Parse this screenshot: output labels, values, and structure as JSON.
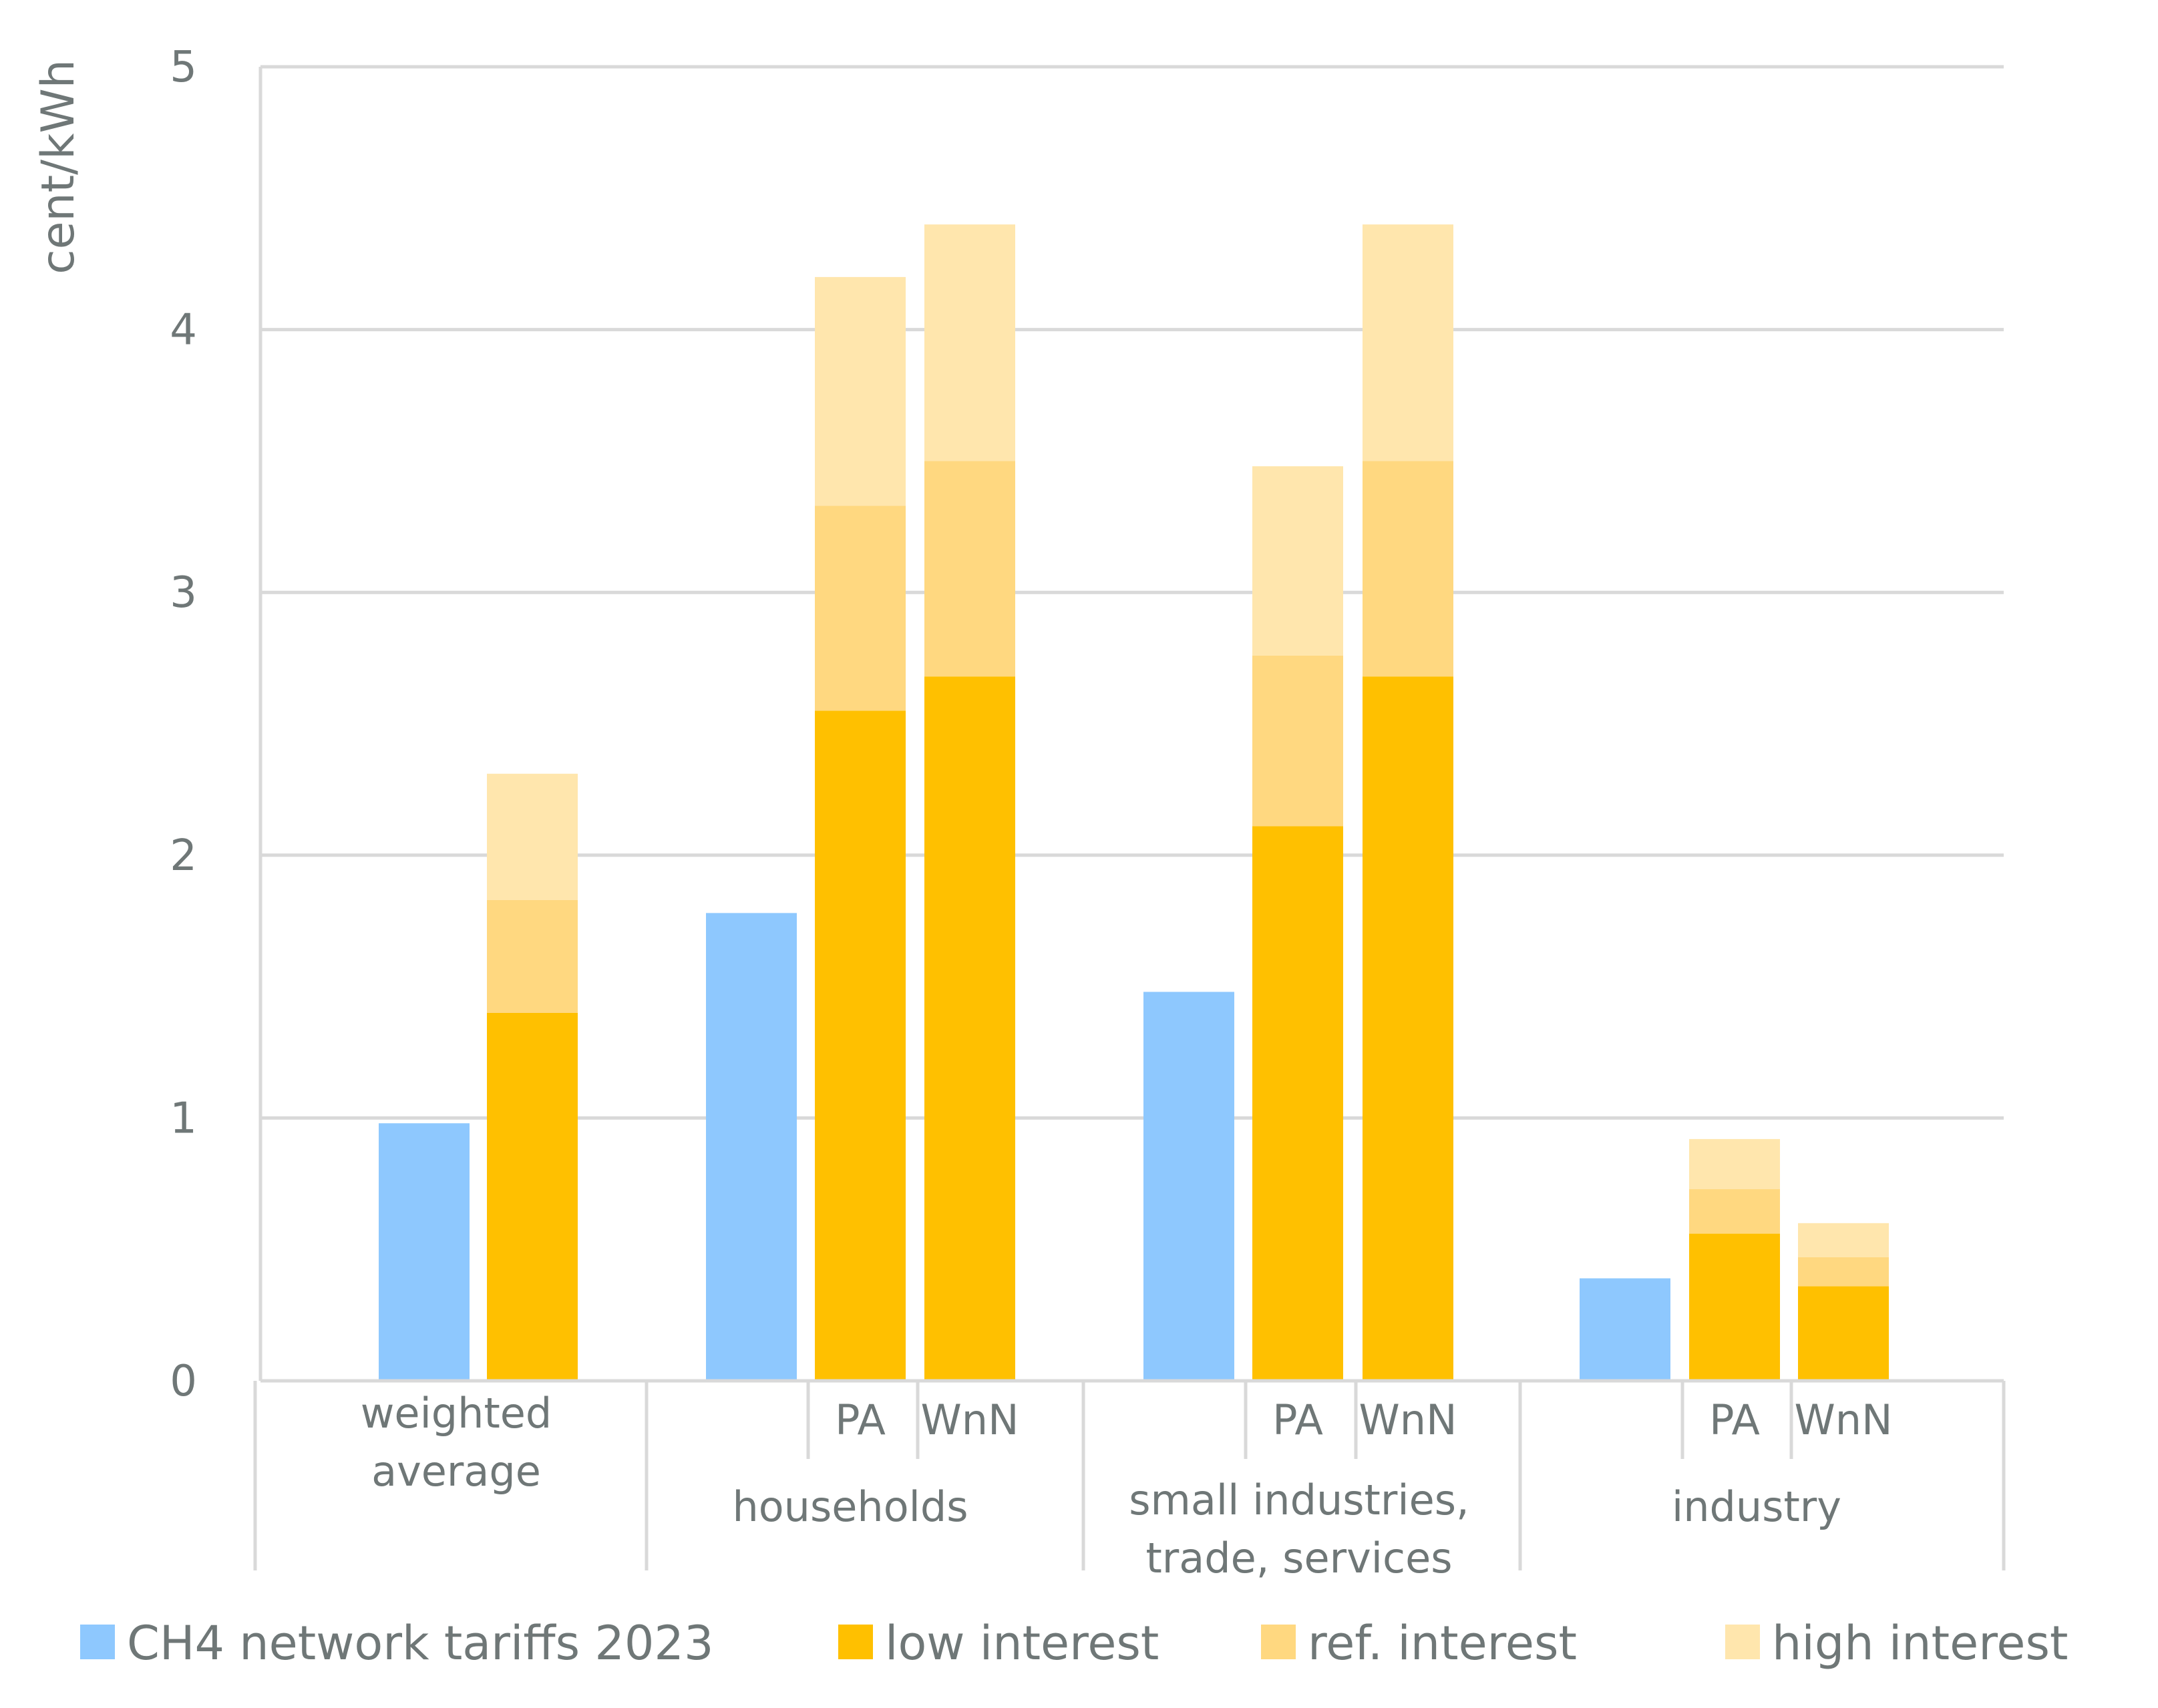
{
  "chart_data": {
    "type": "bar",
    "stacked": true,
    "ylabel": "cent/kWh",
    "ylim": [
      0,
      5
    ],
    "yticks": [
      "0",
      "1",
      "2",
      "3",
      "4",
      "5"
    ],
    "grid": true,
    "legend_position": "bottom",
    "groups": [
      {
        "label": [
          "weighted",
          "average"
        ],
        "bars": [
          {
            "sublabel": "",
            "segments": [
              {
                "series": "CH4 network tariffs 2023",
                "value": 0.98
              }
            ]
          },
          {
            "sublabel": "",
            "segments": [
              {
                "series": "low interest",
                "value": 1.4
              },
              {
                "series": "ref. interest",
                "value": 0.43
              },
              {
                "series": "high interest",
                "value": 0.48
              }
            ]
          }
        ]
      },
      {
        "label": [
          "households"
        ],
        "bars": [
          {
            "sublabel": "",
            "segments": [
              {
                "series": "CH4 network tariffs 2023",
                "value": 1.78
              }
            ]
          },
          {
            "sublabel": "PA",
            "segments": [
              {
                "series": "low interest",
                "value": 2.55
              },
              {
                "series": "ref. interest",
                "value": 0.78
              },
              {
                "series": "high interest",
                "value": 0.87
              }
            ]
          },
          {
            "sublabel": "WnN",
            "segments": [
              {
                "series": "low interest",
                "value": 2.68
              },
              {
                "series": "ref. interest",
                "value": 0.82
              },
              {
                "series": "high interest",
                "value": 0.9
              }
            ]
          }
        ]
      },
      {
        "label": [
          "small industries,",
          "trade, services"
        ],
        "bars": [
          {
            "sublabel": "",
            "segments": [
              {
                "series": "CH4 network tariffs 2023",
                "value": 1.48
              }
            ]
          },
          {
            "sublabel": "PA",
            "segments": [
              {
                "series": "low interest",
                "value": 2.11
              },
              {
                "series": "ref. interest",
                "value": 0.65
              },
              {
                "series": "high interest",
                "value": 0.72
              }
            ]
          },
          {
            "sublabel": "WnN",
            "segments": [
              {
                "series": "low interest",
                "value": 2.68
              },
              {
                "series": "ref. interest",
                "value": 0.82
              },
              {
                "series": "high interest",
                "value": 0.9
              }
            ]
          }
        ]
      },
      {
        "label": [
          "industry"
        ],
        "bars": [
          {
            "sublabel": "",
            "segments": [
              {
                "series": "CH4 network tariffs 2023",
                "value": 0.39
              }
            ]
          },
          {
            "sublabel": "PA",
            "segments": [
              {
                "series": "low interest",
                "value": 0.56
              },
              {
                "series": "ref. interest",
                "value": 0.17
              },
              {
                "series": "high interest",
                "value": 0.19
              }
            ]
          },
          {
            "sublabel": "WnN",
            "segments": [
              {
                "series": "low interest",
                "value": 0.36
              },
              {
                "series": "ref. interest",
                "value": 0.11
              },
              {
                "series": "high interest",
                "value": 0.13
              }
            ]
          }
        ]
      }
    ],
    "legend": [
      {
        "name": "CH4 network tariffs 2023",
        "color": "#8ec8fe"
      },
      {
        "name": "low interest",
        "color": "#ffc000"
      },
      {
        "name": "ref. interest",
        "color": "#ffd880"
      },
      {
        "name": "high interest",
        "color": "#ffe6ad"
      }
    ]
  }
}
